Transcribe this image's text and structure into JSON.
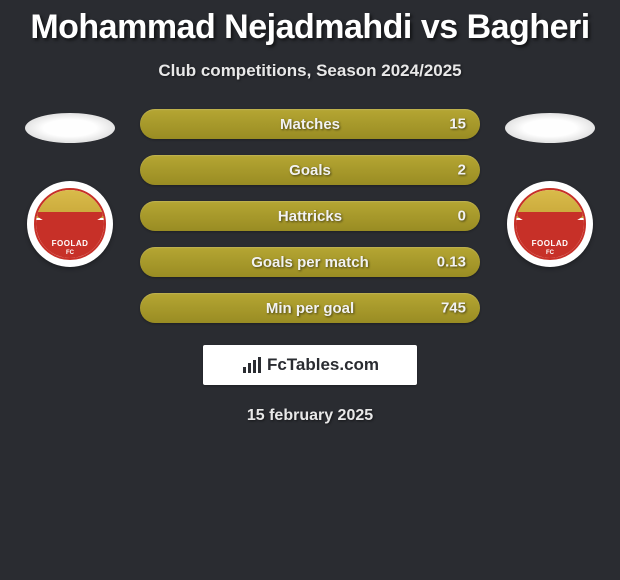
{
  "title": "Mohammad Nejadmahdi vs Bagheri",
  "subtitle": "Club competitions, Season 2024/2025",
  "date": "15 february 2025",
  "brand": {
    "text": "FcTables.com"
  },
  "colors": {
    "bar_fill": "#a89a2a",
    "bar_fill_grad_top": "#b5a633",
    "bar_fill_grad_bot": "#998c23",
    "background": "#2a2c31",
    "text": "#ffffff"
  },
  "club": {
    "name": "FOOLAD",
    "sub": "FC"
  },
  "stats": [
    {
      "label": "Matches",
      "value": "15"
    },
    {
      "label": "Goals",
      "value": "2"
    },
    {
      "label": "Hattricks",
      "value": "0"
    },
    {
      "label": "Goals per match",
      "value": "0.13"
    },
    {
      "label": "Min per goal",
      "value": "745"
    }
  ]
}
